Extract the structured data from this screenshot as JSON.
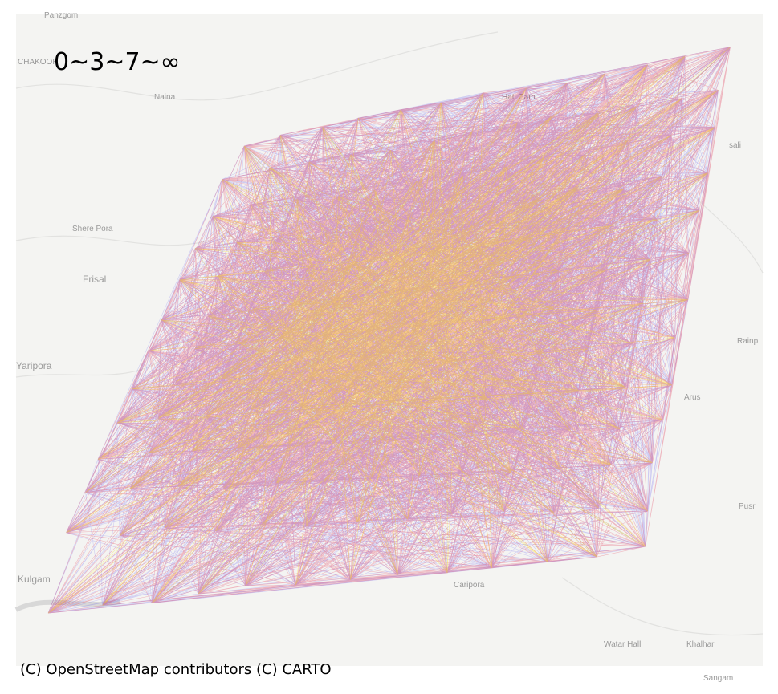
{
  "title": "0~3~7~∞",
  "attribution": "(C) OpenStreetMap contributors (C) CARTO",
  "place_labels": [
    "Panzgom",
    "CHAKOOR",
    "Naina",
    "Hati Cam",
    "sali",
    "Shere Pora",
    "Frisal",
    "Yaripora",
    "Rainp",
    "Arus",
    "Pusr",
    "Kulgam",
    "Caripora",
    "Watar Hall",
    "Khalhar",
    "Sangam"
  ]
}
